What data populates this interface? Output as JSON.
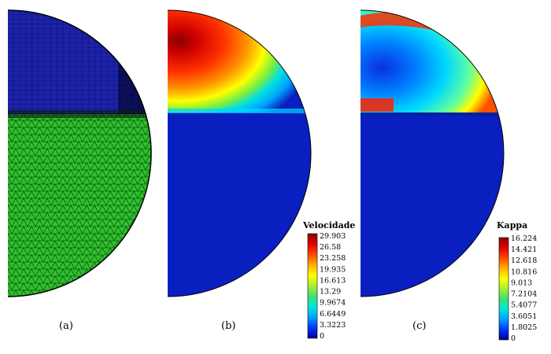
{
  "panels": [
    {
      "label": "(a)"
    },
    {
      "label": "(b)"
    },
    {
      "label": "(c)"
    }
  ],
  "colorbars": [
    {
      "title": "Velocidade",
      "ticks": [
        "29.903",
        "26.58",
        "23.258",
        "19.935",
        "16.613",
        "13.29",
        "9.9674",
        "6.6449",
        "3.3223",
        "0"
      ]
    },
    {
      "title": "Kappa",
      "ticks": [
        "16.224",
        "14.421",
        "12.618",
        "10.816",
        "9.013",
        "7.2104",
        "5.4077",
        "3.6051",
        "1.8025",
        "0"
      ]
    }
  ],
  "colors": {
    "mesh_top": "#1c22a8",
    "mesh_bottom": "#2fbf2f",
    "field_background": "#0a1fbf",
    "field_max": "#7a0000",
    "colormap": [
      "#00008f",
      "#0033ff",
      "#00a0ff",
      "#00e5e0",
      "#40e070",
      "#a8f030",
      "#ffff00",
      "#ffb000",
      "#ff4a00",
      "#e00000",
      "#8a0000"
    ]
  }
}
